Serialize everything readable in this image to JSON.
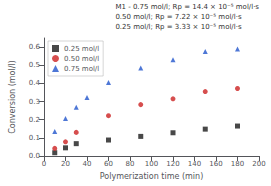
{
  "chart_data": {
    "type": "scatter",
    "xlabel": "Polymerization time (min)",
    "ylabel": "Conversion (mol/l)",
    "series": [
      {
        "name": "0.25 mol/l",
        "color": "#1a1a1a",
        "marker": "square",
        "x": [
          10,
          20,
          30,
          60,
          90,
          120,
          150,
          180
        ],
        "values": [
          0.018,
          0.045,
          0.068,
          0.088,
          0.108,
          0.128,
          0.148,
          0.165
        ]
      },
      {
        "name": "0.50 mol/l",
        "color": "#cc2222",
        "marker": "circle",
        "x": [
          10,
          20,
          30,
          60,
          90,
          120,
          150,
          180
        ],
        "values": [
          0.042,
          0.078,
          0.13,
          0.222,
          0.283,
          0.315,
          0.355,
          0.372
        ]
      },
      {
        "name": "0.75 mol/l",
        "color": "#2255cc",
        "marker": "triangle",
        "x": [
          10,
          20,
          30,
          40,
          60,
          90,
          120,
          150,
          180
        ],
        "values": [
          0.135,
          0.207,
          0.268,
          0.322,
          0.405,
          0.485,
          0.53,
          0.575,
          0.59
        ]
      }
    ],
    "annotations": [
      "M1 - 0.75 mol/l; Rp = 14.4 × 10⁻⁵ mol/l·s",
      "0.50 mol/l; Rp = 7.22 × 10⁻⁵ mol/l·s",
      "0.25 mol/l; Rp = 3.33 × 10⁻⁵ mol/l·s"
    ],
    "xlim": [
      0,
      200
    ],
    "ylim": [
      0,
      0.65
    ],
    "xticks": [
      0,
      20,
      40,
      60,
      80,
      100,
      120,
      140,
      160,
      180,
      200
    ],
    "yticks": [
      {
        "value": 0,
        "label": "0.0"
      },
      0.1,
      0.2,
      0.3,
      0.4,
      0.5,
      0.6
    ],
    "legend": "upper left",
    "grid": false
  }
}
